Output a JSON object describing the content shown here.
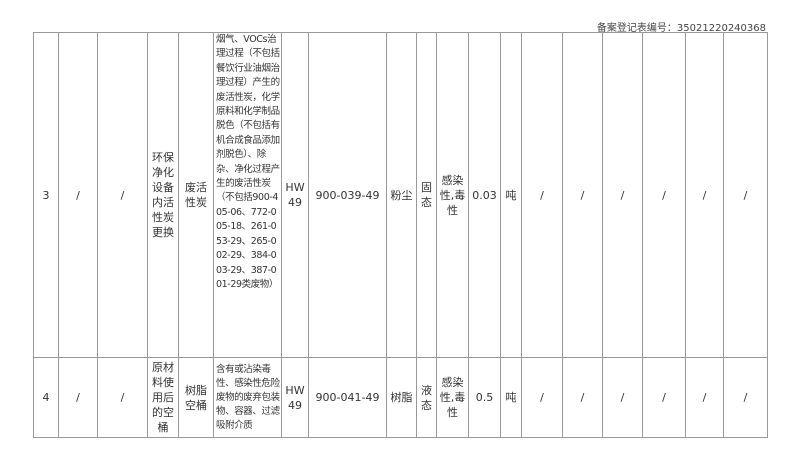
{
  "header": {
    "registration_no": "备案登记表编号：35021220240368"
  },
  "rows": [
    {
      "no": "3",
      "c1": "/",
      "c2": "/",
      "source": "环保净化设备内活性炭更换",
      "name": "废活性炭",
      "description": "烟气、VOCs治理过程（不包括餐饮行业油烟治理过程）产生的废活性炭，化学原料和化学制品脱色（不包括有机合成食品添加剂脱色）、除杂、净化过程产生的废活性炭（不包括900-405-06、772-005-18、261-053-29、265-002-29、384-003-29、387-001-29类废物）",
      "category": "HW49",
      "code": "900-039-49",
      "main_component": "粉尘",
      "form": "固态",
      "hazard": "感染性,毒性",
      "quantity": "0.03",
      "unit": "吨",
      "rest": [
        "/",
        "/",
        "/",
        "/",
        "/",
        "/"
      ]
    },
    {
      "no": "4",
      "c1": "/",
      "c2": "/",
      "source": "原材料使用后的空桶",
      "name": "树脂空桶",
      "description": "含有或沾染毒性、感染性危险废物的废弃包装物、容器、过滤吸附介质",
      "category": "HW49",
      "code": "900-041-49",
      "main_component": "树脂",
      "form": "液态",
      "hazard": "感染性,毒性",
      "quantity": "0.5",
      "unit": "吨",
      "rest": [
        "/",
        "/",
        "/",
        "/",
        "/",
        "/"
      ]
    }
  ]
}
